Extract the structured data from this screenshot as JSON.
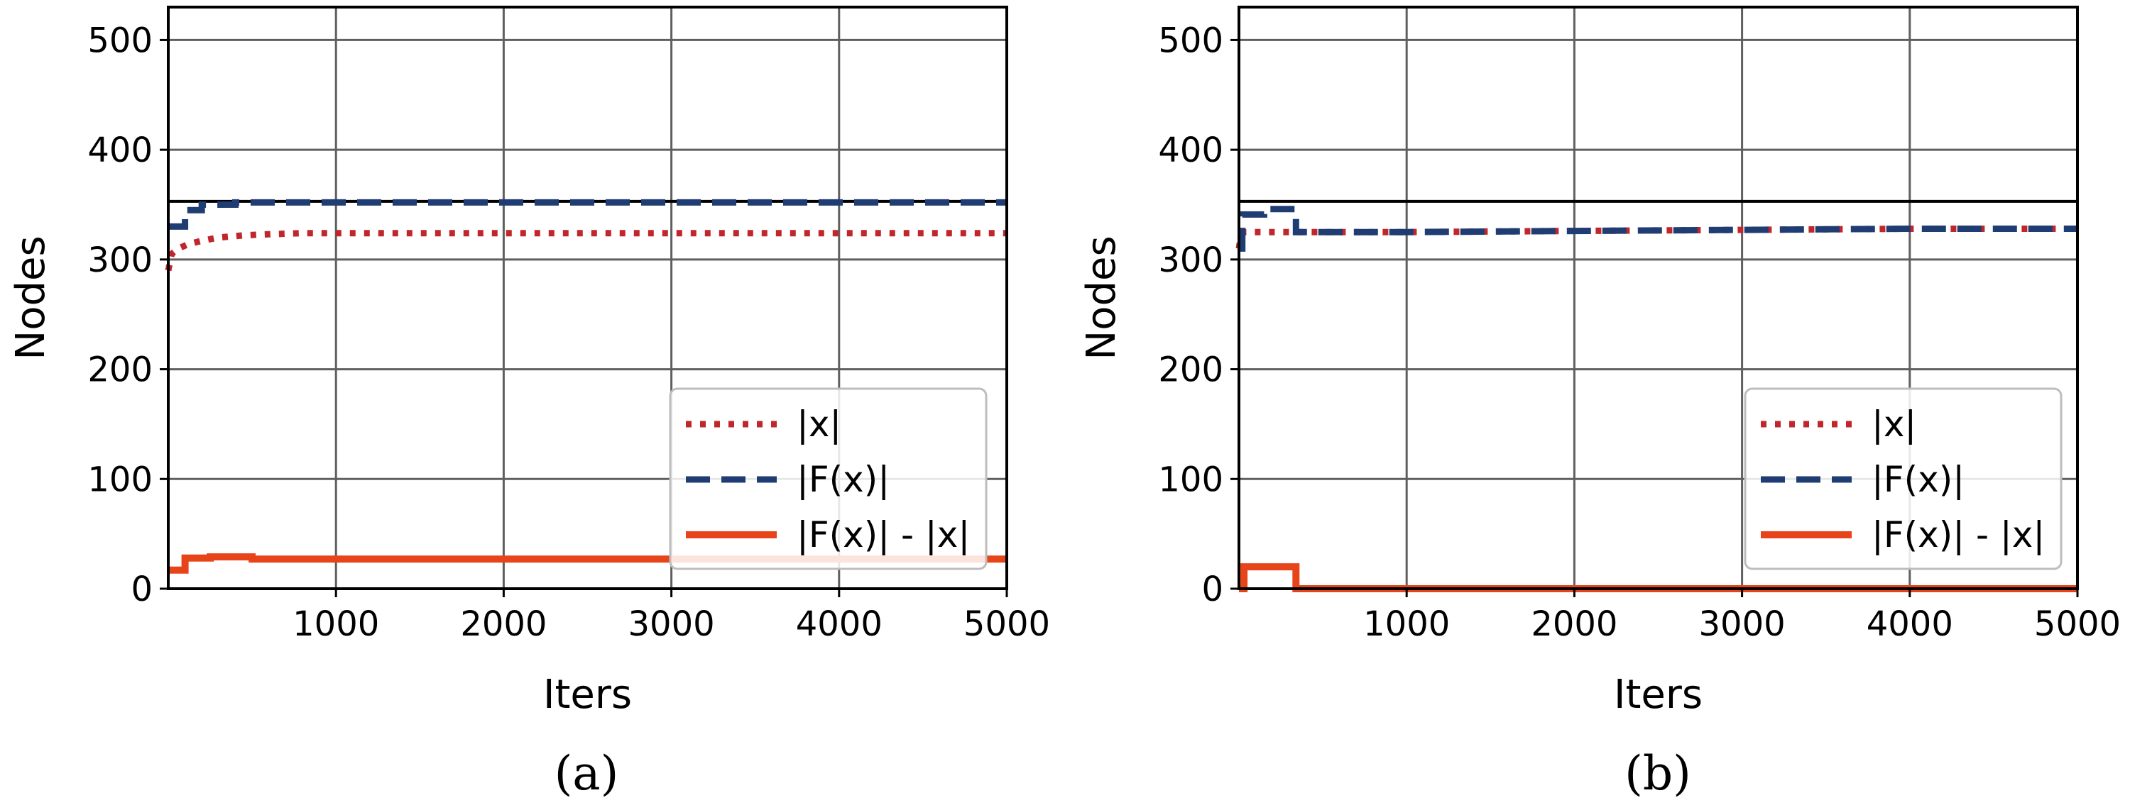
{
  "chart_data": [
    {
      "type": "line",
      "caption": "(a)",
      "xlabel": "Iters",
      "ylabel": "Nodes",
      "xlim": [
        0,
        5000
      ],
      "ylim": [
        0,
        530
      ],
      "xticks": [
        1000,
        2000,
        3000,
        4000,
        5000
      ],
      "yticks": [
        0,
        100,
        200,
        300,
        400,
        500
      ],
      "grid": true,
      "legend_position": "lower-right",
      "reference_line": 353,
      "series": [
        {
          "name": "|x|",
          "style": "dotted",
          "color": "#c0272d",
          "x": [
            0,
            20,
            60,
            120,
            200,
            300,
            450,
            600,
            800,
            1000,
            2000,
            3000,
            4000,
            5000
          ],
          "y": [
            290,
            305,
            310,
            314,
            317,
            320,
            322,
            323,
            324,
            324,
            324,
            324,
            324,
            324
          ]
        },
        {
          "name": "|F(x)|",
          "style": "dashed",
          "color": "#1f3d73",
          "x": [
            0,
            100,
            100,
            200,
            200,
            400,
            400,
            1000,
            5000
          ],
          "y": [
            330,
            330,
            345,
            345,
            350,
            350,
            352,
            352,
            352
          ]
        },
        {
          "name": "|F(x)| - |x|",
          "style": "solid",
          "color": "#e8441a",
          "x": [
            0,
            100,
            100,
            250,
            250,
            500,
            500,
            1000,
            5000
          ],
          "y": [
            17,
            17,
            28,
            28,
            29,
            29,
            27,
            27,
            27
          ]
        }
      ]
    },
    {
      "type": "line",
      "caption": "(b)",
      "xlabel": "Iters",
      "ylabel": "Nodes",
      "xlim": [
        0,
        5000
      ],
      "ylim": [
        0,
        530
      ],
      "xticks": [
        1000,
        2000,
        3000,
        4000,
        5000
      ],
      "yticks": [
        0,
        100,
        200,
        300,
        400,
        500
      ],
      "grid": true,
      "legend_position": "lower-right",
      "reference_line": 353,
      "series": [
        {
          "name": "|x|",
          "style": "dotted",
          "color": "#c0272d",
          "x": [
            0,
            10,
            30,
            100,
            350,
            1000,
            2000,
            3000,
            4000,
            5000
          ],
          "y": [
            310,
            320,
            325,
            325,
            325,
            325,
            326,
            327,
            328,
            328
          ]
        },
        {
          "name": "|F(x)|",
          "style": "dashed",
          "color": "#1f3d73",
          "x": [
            0,
            20,
            20,
            150,
            150,
            340,
            340,
            1000,
            2000,
            3000,
            4000,
            5000
          ],
          "y": [
            310,
            310,
            341,
            341,
            346,
            346,
            325,
            325,
            326,
            327,
            328,
            328
          ]
        },
        {
          "name": "|F(x)| - |x|",
          "style": "solid",
          "color": "#e8441a",
          "x": [
            0,
            30,
            30,
            340,
            340,
            5000
          ],
          "y": [
            0,
            0,
            20,
            20,
            0,
            0
          ]
        }
      ]
    }
  ]
}
